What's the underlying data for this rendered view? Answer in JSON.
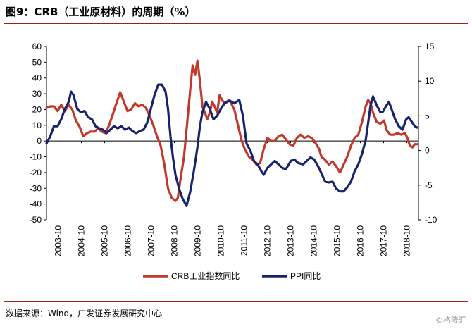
{
  "header": {
    "title": "图9：CRB（工业原材料）的周期（%）"
  },
  "footer": {
    "source": "数据来源：Wind，广发证券发展研究中心",
    "watermark": "©格隆汇"
  },
  "colors": {
    "crb": "#c0392b",
    "ppi": "#17236b",
    "axis": "#000000",
    "rule": "#9a1f1f"
  },
  "chart_data": {
    "type": "line",
    "title": "",
    "x_ticks": [
      "2003-10",
      "2004-10",
      "2005-10",
      "2006-10",
      "2007-10",
      "2008-10",
      "2009-10",
      "2010-10",
      "2011-10",
      "2012-10",
      "2013-10",
      "2014-10",
      "2015-10",
      "2016-10",
      "2017-10",
      "2018-10"
    ],
    "x_range": [
      2003.75,
      2018.9
    ],
    "y_left": {
      "ticks": [
        60,
        50,
        40,
        30,
        20,
        10,
        0,
        -10,
        -20,
        -30,
        -40,
        -50
      ],
      "range": [
        -50,
        60
      ]
    },
    "y_right": {
      "ticks": [
        15,
        10,
        5,
        0,
        -5,
        -10
      ],
      "range": [
        -10,
        15
      ]
    },
    "legend_position": "bottom",
    "series": [
      {
        "name": "CRB工业指数同比",
        "axis": "left",
        "color": "#c0392b",
        "points": [
          [
            2003.75,
            21
          ],
          [
            2003.9,
            22
          ],
          [
            2004.05,
            22
          ],
          [
            2004.2,
            19
          ],
          [
            2004.35,
            23
          ],
          [
            2004.5,
            19
          ],
          [
            2004.65,
            23
          ],
          [
            2004.8,
            20
          ],
          [
            2004.95,
            13
          ],
          [
            2005.1,
            9
          ],
          [
            2005.25,
            3
          ],
          [
            2005.4,
            5
          ],
          [
            2005.55,
            6
          ],
          [
            2005.7,
            6
          ],
          [
            2005.85,
            8
          ],
          [
            2006.0,
            6
          ],
          [
            2006.15,
            5
          ],
          [
            2006.3,
            10
          ],
          [
            2006.45,
            17
          ],
          [
            2006.6,
            24
          ],
          [
            2006.75,
            31
          ],
          [
            2006.9,
            25
          ],
          [
            2007.05,
            19
          ],
          [
            2007.2,
            20
          ],
          [
            2007.35,
            24
          ],
          [
            2007.5,
            22
          ],
          [
            2007.65,
            23
          ],
          [
            2007.8,
            21
          ],
          [
            2007.95,
            16
          ],
          [
            2008.1,
            10
          ],
          [
            2008.25,
            3
          ],
          [
            2008.4,
            -3
          ],
          [
            2008.55,
            -15
          ],
          [
            2008.7,
            -30
          ],
          [
            2008.85,
            -36
          ],
          [
            2009.0,
            -38
          ],
          [
            2009.1,
            -36
          ],
          [
            2009.2,
            -25
          ],
          [
            2009.35,
            -10
          ],
          [
            2009.5,
            15
          ],
          [
            2009.6,
            32
          ],
          [
            2009.7,
            48
          ],
          [
            2009.8,
            42
          ],
          [
            2009.9,
            51
          ],
          [
            2010.0,
            38
          ],
          [
            2010.1,
            22
          ],
          [
            2010.2,
            18
          ],
          [
            2010.3,
            14
          ],
          [
            2010.4,
            18
          ],
          [
            2010.5,
            25
          ],
          [
            2010.6,
            22
          ],
          [
            2010.7,
            18
          ],
          [
            2010.8,
            29
          ],
          [
            2010.9,
            26
          ],
          [
            2011.0,
            24
          ],
          [
            2011.2,
            26
          ],
          [
            2011.4,
            20
          ],
          [
            2011.55,
            10
          ],
          [
            2011.7,
            0
          ],
          [
            2011.85,
            -6
          ],
          [
            2012.0,
            -10
          ],
          [
            2012.15,
            -12
          ],
          [
            2012.3,
            -15
          ],
          [
            2012.45,
            -14
          ],
          [
            2012.6,
            -5
          ],
          [
            2012.75,
            2
          ],
          [
            2012.9,
            0
          ],
          [
            2013.05,
            0
          ],
          [
            2013.2,
            3
          ],
          [
            2013.35,
            4
          ],
          [
            2013.5,
            1
          ],
          [
            2013.65,
            -2
          ],
          [
            2013.8,
            -3
          ],
          [
            2013.95,
            2
          ],
          [
            2014.1,
            4
          ],
          [
            2014.25,
            2
          ],
          [
            2014.4,
            3
          ],
          [
            2014.55,
            2
          ],
          [
            2014.7,
            -1
          ],
          [
            2014.85,
            -5
          ],
          [
            2014.95,
            -10
          ],
          [
            2015.1,
            -12
          ],
          [
            2015.25,
            -15
          ],
          [
            2015.4,
            -13
          ],
          [
            2015.55,
            -16
          ],
          [
            2015.7,
            -20
          ],
          [
            2015.85,
            -15
          ],
          [
            2016.0,
            -10
          ],
          [
            2016.15,
            -3
          ],
          [
            2016.3,
            2
          ],
          [
            2016.45,
            4
          ],
          [
            2016.6,
            12
          ],
          [
            2016.75,
            22
          ],
          [
            2016.85,
            26
          ],
          [
            2016.95,
            24
          ],
          [
            2017.05,
            18
          ],
          [
            2017.2,
            12
          ],
          [
            2017.35,
            11
          ],
          [
            2017.5,
            13
          ],
          [
            2017.6,
            7
          ],
          [
            2017.75,
            4
          ],
          [
            2017.9,
            4
          ],
          [
            2018.05,
            5
          ],
          [
            2018.2,
            4
          ],
          [
            2018.35,
            5
          ],
          [
            2018.45,
            2
          ],
          [
            2018.55,
            -3
          ],
          [
            2018.65,
            -4
          ],
          [
            2018.75,
            -2
          ],
          [
            2018.85,
            -2
          ]
        ]
      },
      {
        "name": "PPI同比",
        "axis": "right",
        "color": "#17236b",
        "points": [
          [
            2003.75,
            1.0
          ],
          [
            2003.9,
            2.0
          ],
          [
            2004.05,
            3.5
          ],
          [
            2004.2,
            3.5
          ],
          [
            2004.35,
            4.5
          ],
          [
            2004.5,
            6.0
          ],
          [
            2004.65,
            7.0
          ],
          [
            2004.75,
            8.5
          ],
          [
            2004.85,
            8.0
          ],
          [
            2005.0,
            6.0
          ],
          [
            2005.15,
            5.5
          ],
          [
            2005.3,
            5.7
          ],
          [
            2005.45,
            4.8
          ],
          [
            2005.6,
            4.5
          ],
          [
            2005.75,
            3.5
          ],
          [
            2005.9,
            3.2
          ],
          [
            2006.05,
            3.0
          ],
          [
            2006.2,
            2.5
          ],
          [
            2006.35,
            3.0
          ],
          [
            2006.5,
            3.5
          ],
          [
            2006.65,
            3.2
          ],
          [
            2006.8,
            3.5
          ],
          [
            2006.95,
            3.0
          ],
          [
            2007.1,
            3.3
          ],
          [
            2007.25,
            2.8
          ],
          [
            2007.4,
            2.5
          ],
          [
            2007.55,
            2.8
          ],
          [
            2007.7,
            3.0
          ],
          [
            2007.85,
            4.0
          ],
          [
            2008.0,
            6.0
          ],
          [
            2008.15,
            8.0
          ],
          [
            2008.3,
            9.5
          ],
          [
            2008.45,
            9.5
          ],
          [
            2008.6,
            8.5
          ],
          [
            2008.7,
            6.0
          ],
          [
            2008.8,
            2.0
          ],
          [
            2008.9,
            -1.0
          ],
          [
            2009.0,
            -3.5
          ],
          [
            2009.15,
            -5.5
          ],
          [
            2009.3,
            -7.0
          ],
          [
            2009.45,
            -8.0
          ],
          [
            2009.6,
            -6.0
          ],
          [
            2009.75,
            -3.0
          ],
          [
            2009.9,
            0.5
          ],
          [
            2010.0,
            3.5
          ],
          [
            2010.1,
            5.5
          ],
          [
            2010.25,
            7.0
          ],
          [
            2010.4,
            6.0
          ],
          [
            2010.55,
            4.5
          ],
          [
            2010.7,
            5.0
          ],
          [
            2010.85,
            6.0
          ],
          [
            2011.0,
            6.8
          ],
          [
            2011.2,
            7.2
          ],
          [
            2011.4,
            6.8
          ],
          [
            2011.6,
            7.3
          ],
          [
            2011.75,
            5.0
          ],
          [
            2011.9,
            1.0
          ],
          [
            2012.05,
            0.0
          ],
          [
            2012.2,
            -1.5
          ],
          [
            2012.35,
            -2.0
          ],
          [
            2012.5,
            -3.0
          ],
          [
            2012.6,
            -3.5
          ],
          [
            2012.75,
            -2.5
          ],
          [
            2012.9,
            -2.0
          ],
          [
            2013.05,
            -1.5
          ],
          [
            2013.2,
            -2.0
          ],
          [
            2013.35,
            -2.5
          ],
          [
            2013.5,
            -2.7
          ],
          [
            2013.7,
            -1.5
          ],
          [
            2013.85,
            -1.3
          ],
          [
            2014.0,
            -1.8
          ],
          [
            2014.2,
            -2.0
          ],
          [
            2014.35,
            -1.5
          ],
          [
            2014.5,
            -1.0
          ],
          [
            2014.65,
            -1.3
          ],
          [
            2014.8,
            -2.2
          ],
          [
            2014.95,
            -3.3
          ],
          [
            2015.1,
            -4.5
          ],
          [
            2015.25,
            -4.6
          ],
          [
            2015.4,
            -4.5
          ],
          [
            2015.55,
            -5.5
          ],
          [
            2015.7,
            -5.9
          ],
          [
            2015.85,
            -5.9
          ],
          [
            2016.0,
            -5.3
          ],
          [
            2016.15,
            -4.5
          ],
          [
            2016.3,
            -3.0
          ],
          [
            2016.45,
            -2.0
          ],
          [
            2016.6,
            -0.5
          ],
          [
            2016.75,
            1.5
          ],
          [
            2016.85,
            4.0
          ],
          [
            2016.95,
            6.5
          ],
          [
            2017.05,
            7.8
          ],
          [
            2017.2,
            6.5
          ],
          [
            2017.35,
            5.5
          ],
          [
            2017.45,
            5.6
          ],
          [
            2017.6,
            6.5
          ],
          [
            2017.7,
            7.0
          ],
          [
            2017.8,
            6.0
          ],
          [
            2017.95,
            4.5
          ],
          [
            2018.1,
            3.5
          ],
          [
            2018.25,
            3.0
          ],
          [
            2018.4,
            4.5
          ],
          [
            2018.5,
            4.8
          ],
          [
            2018.65,
            4.0
          ],
          [
            2018.75,
            3.5
          ],
          [
            2018.85,
            3.3
          ]
        ]
      }
    ]
  }
}
